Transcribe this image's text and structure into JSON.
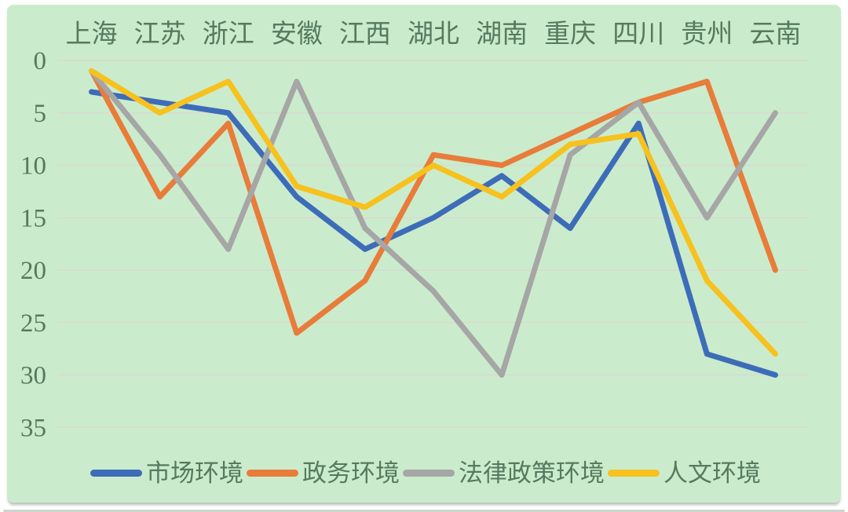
{
  "panel": {
    "background": "#cbeccc",
    "text_color": "#557a5f",
    "gridline_color": "#ddd6d2"
  },
  "chart_data": {
    "type": "line",
    "title": "",
    "xlabel": "",
    "ylabel": "",
    "categories": [
      "上海",
      "江苏",
      "浙江",
      "安徽",
      "江西",
      "湖北",
      "湖南",
      "重庆",
      "四川",
      "贵州",
      "云南"
    ],
    "series": [
      {
        "name": "市场环境",
        "color": "#3d6cb8",
        "values": [
          3,
          4,
          5,
          13,
          18,
          15,
          11,
          16,
          6,
          28,
          30
        ]
      },
      {
        "name": "政务环境",
        "color": "#e87c3a",
        "values": [
          1,
          13,
          6,
          26,
          21,
          9,
          10,
          7,
          4,
          2,
          20
        ]
      },
      {
        "name": "法律政策环境",
        "color": "#a6a6a6",
        "values": [
          1,
          9,
          18,
          2,
          16,
          22,
          30,
          9,
          4,
          15,
          5
        ]
      },
      {
        "name": "人文环境",
        "color": "#f7c11e",
        "values": [
          1,
          5,
          2,
          12,
          14,
          10,
          13,
          8,
          7,
          21,
          28
        ]
      }
    ],
    "y_axis": {
      "min": 0,
      "max": 35,
      "ticks": [
        0,
        5,
        10,
        15,
        20,
        25,
        30,
        35
      ],
      "inverted": true
    },
    "x_axis_position": "top",
    "grid": true,
    "legend_position": "bottom"
  }
}
